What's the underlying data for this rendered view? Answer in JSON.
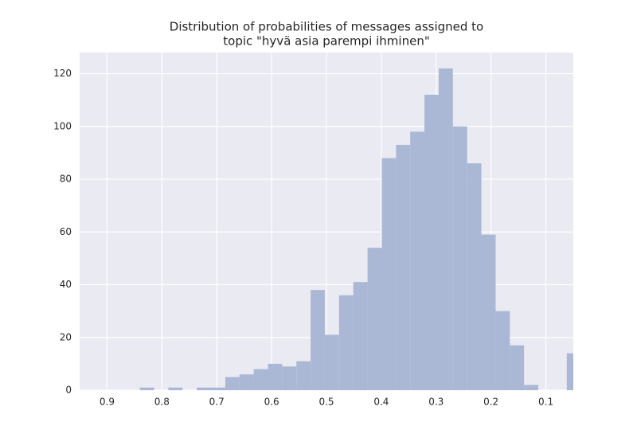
{
  "chart_data": {
    "type": "histogram",
    "title": [
      "Distribution of probabilities of messages assigned to",
      "topic \"hyvä asia parempi ihminen\""
    ],
    "bins": [
      0.036,
      0.0619,
      0.0879,
      0.1138,
      0.1398,
      0.1657,
      0.1916,
      0.2176,
      0.2435,
      0.2695,
      0.2954,
      0.3214,
      0.3473,
      0.3732,
      0.3992,
      0.4251,
      0.4511,
      0.477,
      0.503,
      0.5289,
      0.5548,
      0.5808,
      0.6067,
      0.6327,
      0.6586,
      0.6845,
      0.7105,
      0.7364,
      0.7624,
      0.7883,
      0.8143,
      0.8402
    ],
    "values": [
      14,
      0,
      0,
      2,
      17,
      30,
      59,
      86,
      100,
      122,
      112,
      98,
      93,
      88,
      54,
      41,
      36,
      21,
      38,
      11,
      9,
      10,
      8,
      6,
      5,
      1,
      1,
      0,
      1,
      0,
      1
    ],
    "color": "#aab8d6",
    "xlim": [
      0.95,
      0.05
    ],
    "xticks": [
      0.9,
      0.8,
      0.7,
      0.6,
      0.5,
      0.4,
      0.3,
      0.2,
      0.1
    ],
    "ylim": [
      0,
      128
    ],
    "yticks": [
      0,
      20,
      40,
      60,
      80,
      100,
      120
    ],
    "grid": true
  }
}
